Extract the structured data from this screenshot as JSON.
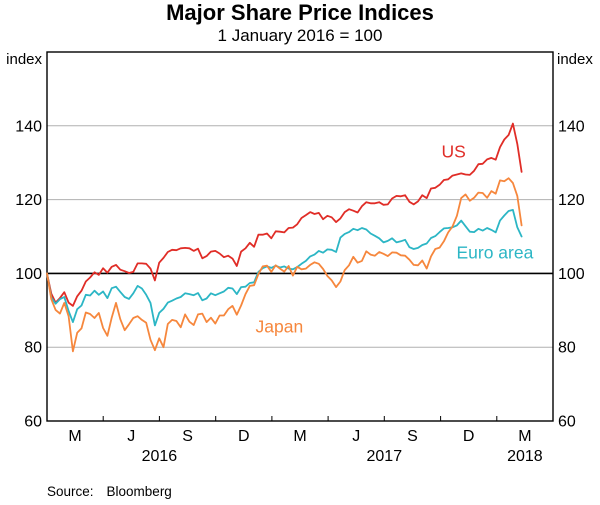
{
  "title": "Major Share Price Indices",
  "subtitle": "1 January 2016 = 100",
  "y_axis": {
    "unit_left": "index",
    "unit_right": "index"
  },
  "source": {
    "label": "Source:",
    "value": "Bloomberg"
  },
  "chart_data": {
    "type": "line",
    "title": "Major Share Price Indices",
    "subtitle": "1 January 2016 = 100",
    "ylabel": "index",
    "ylim": [
      60,
      160
    ],
    "yticks": [
      60,
      80,
      100,
      120,
      140
    ],
    "ygridlines": [
      80,
      100,
      120,
      140
    ],
    "reference_line": 100,
    "grid_color": "#b0b0b0",
    "x_range_months": 27,
    "x_total_days": 821,
    "sample_interval_days": 7,
    "x_start_label": "1 January 2016",
    "xtick_months": [
      3,
      6,
      9,
      12,
      15,
      18,
      21,
      24
    ],
    "xtick_labels": [
      {
        "text": "M",
        "month": 1.5
      },
      {
        "text": "J",
        "month": 4.5
      },
      {
        "text": "S",
        "month": 7.5
      },
      {
        "text": "D",
        "month": 10.5
      },
      {
        "text": "M",
        "month": 13.5
      },
      {
        "text": "J",
        "month": 16.5
      },
      {
        "text": "S",
        "month": 19.5
      },
      {
        "text": "D",
        "month": 22.5
      },
      {
        "text": "M",
        "month": 25.5
      }
    ],
    "year_labels": [
      {
        "text": "2016",
        "month": 6
      },
      {
        "text": "2017",
        "month": 18
      },
      {
        "text": "2018",
        "month": 25.5
      }
    ],
    "series": [
      {
        "name": "US",
        "color": "#e02d27",
        "label_anchor": {
          "month": 21.7,
          "value": 133
        },
        "values": [
          100,
          94.5,
          92.1,
          93.3,
          94.9,
          92.1,
          91.2,
          93.8,
          95.3,
          97.8,
          98.9,
          100.3,
          99.6,
          101.4,
          100.2,
          101.8,
          102.3,
          101,
          100.6,
          100.1,
          100.4,
          102.7,
          102.7,
          102.6,
          101.3,
          98.1,
          102.9,
          104.2,
          105.8,
          106.4,
          106.3,
          106.8,
          106.9,
          106.8,
          106.1,
          106.7,
          104.1,
          104.7,
          105.9,
          106.1,
          105.4,
          104.4,
          104.8,
          104,
          102,
          105.9,
          106.8,
          108.3,
          107.2,
          110.5,
          110.5,
          110.8,
          109.5,
          111.4,
          111.3,
          111.1,
          112.3,
          112.4,
          113.3,
          115,
          115.8,
          116.6,
          116.1,
          116.4,
          114.7,
          115.6,
          115.2,
          113.9,
          114.9,
          116.6,
          117.4,
          117,
          116.5,
          118.2,
          119.3,
          119,
          119,
          119.3,
          118.6,
          118.7,
          120.3,
          121,
          120.9,
          121.2,
          119.4,
          118.7,
          119.5,
          121.2,
          120.4,
          123,
          123.2,
          124,
          125.3,
          125.5,
          126.5,
          126.8,
          127.1,
          126.8,
          126.7,
          127.8,
          129.6,
          129.7,
          130.9,
          131.3,
          130.8,
          134.2,
          136.3,
          137.5,
          140.6,
          135.1,
          127.5
        ]
      },
      {
        "name": "Euro area",
        "color": "#2cb6c5",
        "label_anchor": {
          "month": 23.9,
          "value": 105.5
        },
        "values": [
          100,
          93.5,
          91.8,
          93,
          93.6,
          89.8,
          86.8,
          90.3,
          91.3,
          94.2,
          94,
          95.3,
          94.2,
          95.1,
          93.3,
          96,
          96.4,
          95,
          93.6,
          93.1,
          94.6,
          96.6,
          95.9,
          94.2,
          92,
          85.9,
          89.3,
          90.4,
          92.1,
          92.6,
          93.2,
          93.6,
          94.6,
          94.4,
          94.1,
          94.7,
          92.7,
          93.2,
          94.6,
          94.1,
          94.6,
          95.1,
          96.1,
          95.9,
          94.4,
          96.3,
          96.4,
          97.4,
          97.6,
          100.4,
          101.4,
          101.9,
          101.5,
          102.1,
          101.6,
          101.9,
          101.3,
          101.1,
          101.7,
          102.6,
          103.4,
          104.6,
          105.1,
          106.1,
          105.6,
          106.5,
          106.4,
          105.8,
          109.7,
          110.7,
          111.2,
          112.1,
          111.7,
          112.3,
          111.9,
          110.8,
          110.2,
          109.5,
          108.4,
          108.8,
          109.5,
          108.4,
          108.7,
          109.1,
          107.1,
          106.6,
          106.9,
          107.7,
          108.1,
          109.6,
          110.1,
          111.2,
          112.2,
          112.3,
          112.5,
          113,
          114.3,
          112.8,
          111.3,
          111.2,
          112.1,
          111.6,
          112.3,
          111.8,
          111.1,
          114.3,
          115.7,
          116.9,
          117.2,
          112.5,
          110
        ]
      },
      {
        "name": "Japan",
        "color": "#f6873d",
        "label_anchor": {
          "month": 12.4,
          "value": 85.5
        },
        "values": [
          100,
          93,
          90.1,
          89.1,
          92,
          88.4,
          78.9,
          83.9,
          85.1,
          89.4,
          89,
          87.9,
          89.3,
          85.2,
          83.1,
          88,
          92,
          87.6,
          84.6,
          86.2,
          87.9,
          88.4,
          87.4,
          86.6,
          82,
          79.2,
          82.4,
          80,
          86.3,
          87.4,
          87.1,
          85.4,
          88.9,
          86.9,
          86,
          88.9,
          89.1,
          86.8,
          88,
          86.4,
          88.6,
          88.6,
          90.3,
          91.2,
          88.8,
          91.3,
          94.4,
          96.6,
          96.8,
          99.8,
          101.9,
          102.1,
          100.4,
          102.2,
          101.3,
          100.5,
          102,
          99.4,
          101.8,
          101.1,
          101.3,
          102.3,
          103,
          102.6,
          101.2,
          99.3,
          98.1,
          96.3,
          97.8,
          100.9,
          102.2,
          104.5,
          102.9,
          103.4,
          106,
          105.1,
          104.8,
          105.8,
          105.3,
          104.7,
          105.7,
          105.6,
          104.9,
          104.8,
          103.7,
          102.3,
          102.2,
          103.5,
          101.3,
          104.6,
          106.6,
          107,
          108.7,
          111.1,
          112.7,
          115.6,
          120.4,
          121.4,
          119.7,
          120.5,
          121.9,
          121.8,
          120.5,
          122.3,
          121.6,
          125.2,
          125,
          125.8,
          124.5,
          121,
          113
        ]
      }
    ]
  }
}
